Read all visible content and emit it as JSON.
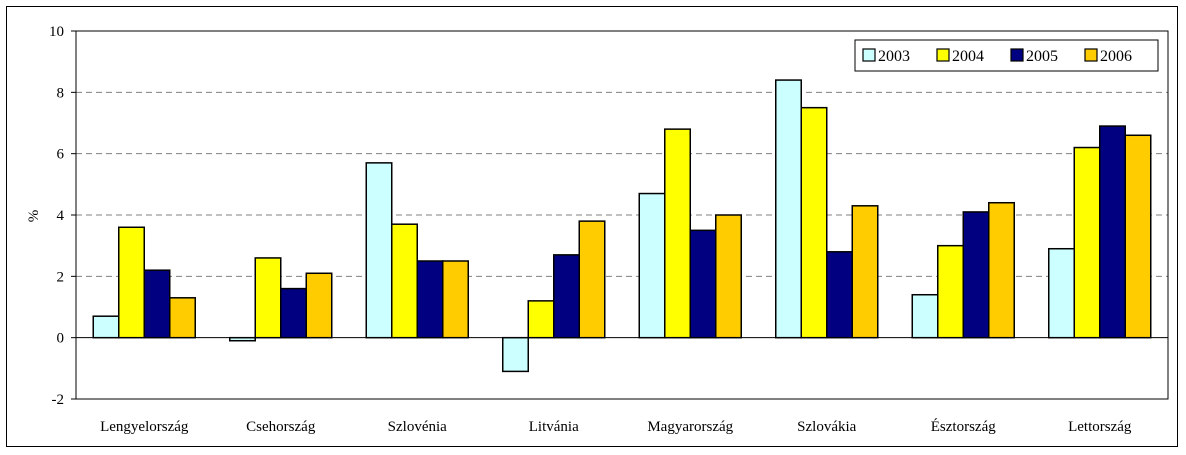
{
  "chart_data": {
    "type": "bar",
    "categories": [
      "Lengyelország",
      "Csehország",
      "Szlovénia",
      "Litvánia",
      "Magyarország",
      "Szlovákia",
      "Észtország",
      "Lettország"
    ],
    "series": [
      {
        "name": "2003",
        "color": "#ccffff",
        "values": [
          0.7,
          -0.1,
          5.7,
          -1.1,
          4.7,
          8.4,
          1.4,
          2.9
        ]
      },
      {
        "name": "2004",
        "color": "#ffff00",
        "values": [
          3.6,
          2.6,
          3.7,
          1.2,
          6.8,
          7.5,
          3.0,
          6.2
        ]
      },
      {
        "name": "2005",
        "color": "#000080",
        "values": [
          2.2,
          1.6,
          2.5,
          2.7,
          3.5,
          2.8,
          4.1,
          6.9
        ]
      },
      {
        "name": "2006",
        "color": "#ffcc00",
        "values": [
          1.3,
          2.1,
          2.5,
          3.8,
          4.0,
          4.3,
          4.4,
          6.6
        ]
      }
    ],
    "ylabel": "%",
    "ylim": [
      -2,
      10
    ],
    "yticks": [
      -2,
      0,
      2,
      4,
      6,
      8,
      10
    ],
    "grid": true,
    "legend_position": "top-right"
  }
}
